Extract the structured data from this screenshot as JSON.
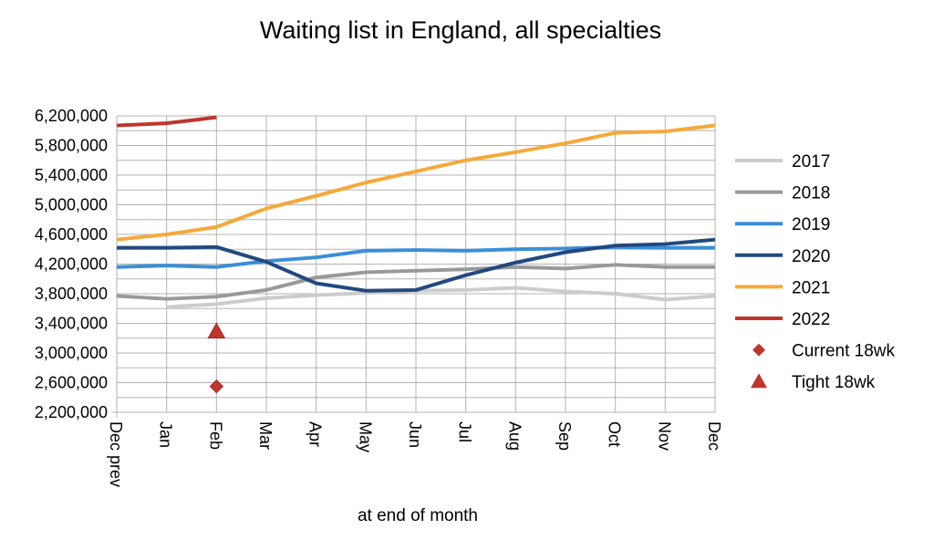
{
  "chart_data": {
    "type": "line",
    "title": "Waiting list in England, all specialties",
    "xlabel": "at end of month",
    "ylabel": "",
    "categories": [
      "Dec prev",
      "Jan",
      "Feb",
      "Mar",
      "Apr",
      "May",
      "Jun",
      "Jul",
      "Aug",
      "Sep",
      "Oct",
      "Nov",
      "Dec"
    ],
    "yticks": [
      "6,200,000",
      "5,800,000",
      "5,400,000",
      "5,000,000",
      "4,600,000",
      "4,200,000",
      "3,800,000",
      "3,400,000",
      "3,000,000",
      "2,600,000",
      "2,200,000"
    ],
    "ylim": [
      2200000,
      6200000
    ],
    "grid": true,
    "legend_position": "right",
    "series": [
      {
        "name": "2017",
        "color": "#cccccc",
        "values": [
          null,
          3620000,
          3660000,
          3740000,
          3780000,
          3810000,
          3840000,
          3850000,
          3880000,
          3830000,
          3800000,
          3720000,
          3770000
        ]
      },
      {
        "name": "2018",
        "color": "#999999",
        "values": [
          3770000,
          3730000,
          3760000,
          3850000,
          4020000,
          4090000,
          4110000,
          4130000,
          4160000,
          4140000,
          4190000,
          4160000,
          4160000
        ]
      },
      {
        "name": "2019",
        "color": "#3a8ed8",
        "values": [
          4160000,
          4180000,
          4160000,
          4240000,
          4290000,
          4380000,
          4390000,
          4380000,
          4400000,
          4410000,
          4430000,
          4420000,
          4420000
        ]
      },
      {
        "name": "2020",
        "color": "#22497f",
        "values": [
          4420000,
          4420000,
          4430000,
          4230000,
          3940000,
          3840000,
          3850000,
          4050000,
          4220000,
          4360000,
          4450000,
          4470000,
          4530000
        ]
      },
      {
        "name": "2021",
        "color": "#f5a93a",
        "values": [
          4530000,
          4600000,
          4700000,
          4950000,
          5120000,
          5300000,
          5450000,
          5600000,
          5710000,
          5830000,
          5970000,
          5990000,
          6070000
        ]
      },
      {
        "name": "2022",
        "color": "#c0352b",
        "values": [
          6070000,
          6100000,
          6180000,
          null,
          null,
          null,
          null,
          null,
          null,
          null,
          null,
          null,
          null
        ]
      }
    ],
    "markers": [
      {
        "name": "Current 18wk",
        "shape": "diamond",
        "color": "#c0352b",
        "x": "Feb",
        "y": 2550000
      },
      {
        "name": "Tight 18wk",
        "shape": "triangle",
        "color": "#c0352b",
        "x": "Feb",
        "y": 3290000
      }
    ]
  }
}
